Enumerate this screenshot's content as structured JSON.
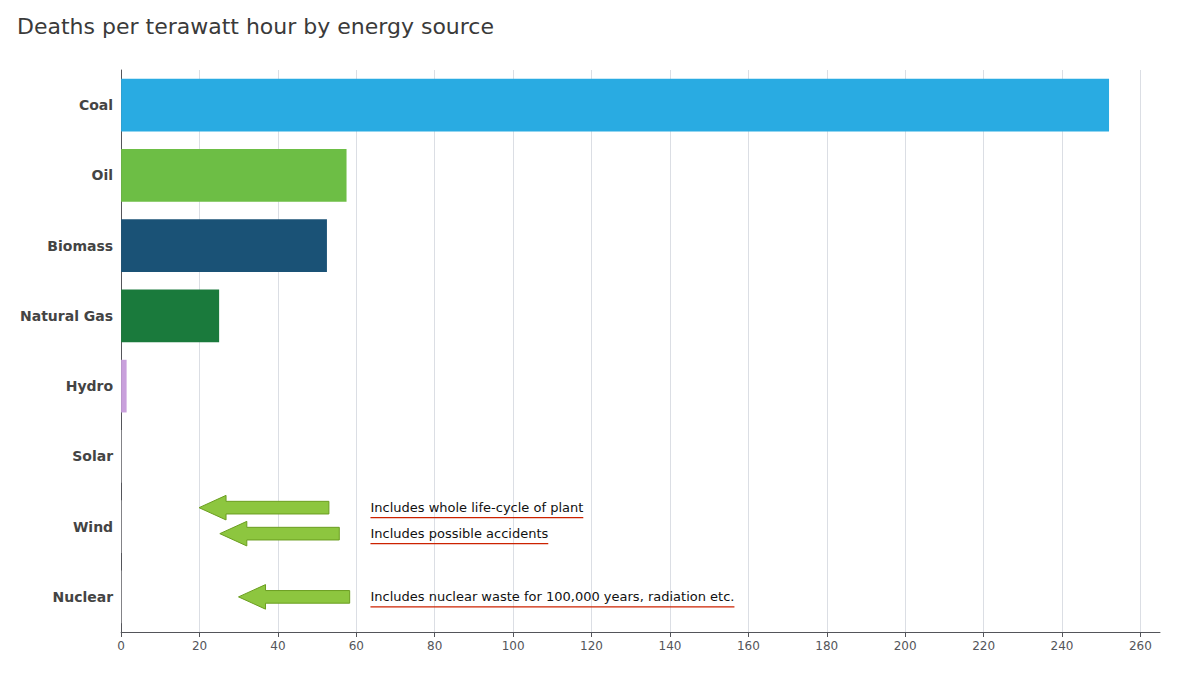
{
  "chart_data": {
    "type": "bar",
    "title": "Deaths per terawatt hour by energy source",
    "orientation": "horizontal",
    "categories": [
      "Coal",
      "Oil",
      "Biomass",
      "Natural Gas",
      "Hydro",
      "Solar",
      "Wind",
      "Nuclear"
    ],
    "values": [
      252,
      57.5,
      52.5,
      25,
      1.4,
      0.07,
      0.07,
      0.07
    ],
    "colors": [
      "#29ABE2",
      "#6DBE45",
      "#1A5276",
      "#1A7A3C",
      "#C9A0DC",
      "#ffffff",
      "#ffffff",
      "#ffffff"
    ],
    "xlim": [
      0,
      265
    ],
    "xticks": [
      0,
      20,
      40,
      60,
      80,
      100,
      120,
      140,
      160,
      180,
      200,
      220,
      240,
      260
    ],
    "grid": true,
    "annotations": [
      "Includes whole life-cycle of plant",
      "Includes possible accidents",
      "Includes nuclear waste for 100,000 years, radiation etc."
    ]
  }
}
